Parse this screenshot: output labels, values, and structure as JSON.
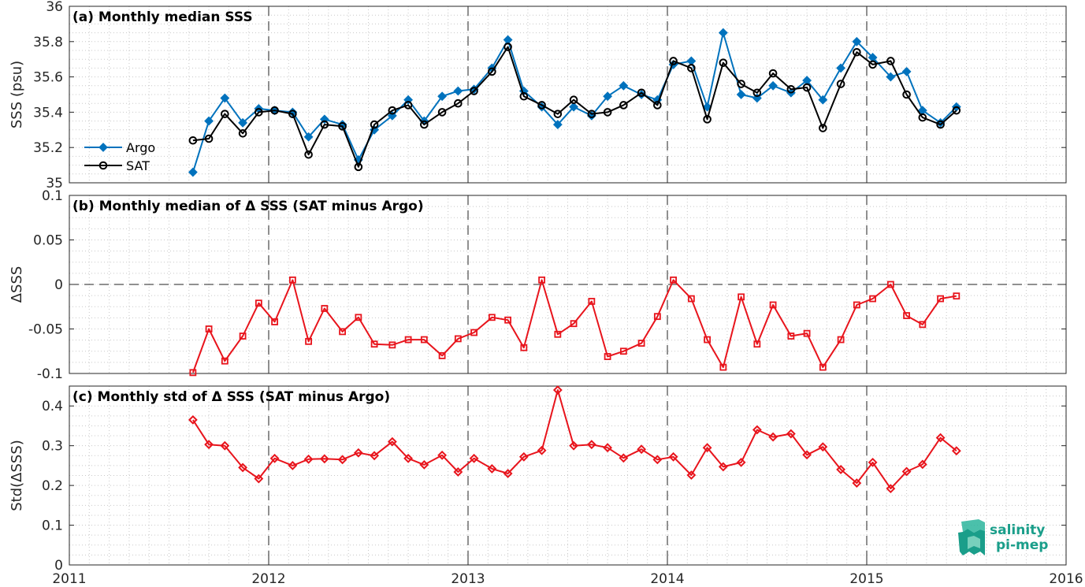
{
  "colors": {
    "argo": "#0072BD",
    "sat": "#000000",
    "delta": "#E8141C",
    "grid": "#c8c8c8",
    "logo": "#1a9e8a"
  },
  "logo": {
    "line1": "salinity",
    "line2": "pi-mep",
    "icon": "wave-logo-icon"
  },
  "x_ticks": [
    "2011",
    "2012",
    "2013",
    "2014",
    "2015",
    "2016"
  ],
  "chart_data": [
    {
      "type": "line",
      "title": "(a) Monthly median SSS",
      "ylabel": "SSS (psu)",
      "xlim": [
        2011,
        2016
      ],
      "ylim": [
        35,
        36
      ],
      "y_ticks": [
        "35",
        "35.2",
        "35.4",
        "35.6",
        "35.8",
        "36"
      ],
      "grid": true,
      "legend": "left",
      "x": [
        2011.62,
        2011.7,
        2011.78,
        2011.87,
        2011.95,
        2012.03,
        2012.12,
        2012.2,
        2012.28,
        2012.37,
        2012.45,
        2012.53,
        2012.62,
        2012.7,
        2012.78,
        2012.87,
        2012.95,
        2013.03,
        2013.12,
        2013.2,
        2013.28,
        2013.37,
        2013.45,
        2013.53,
        2013.62,
        2013.7,
        2013.78,
        2013.87,
        2013.95,
        2014.03,
        2014.12,
        2014.2,
        2014.28,
        2014.37,
        2014.45,
        2014.53,
        2014.62,
        2014.7,
        2014.78,
        2014.87,
        2014.95,
        2015.03,
        2015.12,
        2015.2,
        2015.28,
        2015.37,
        2015.45
      ],
      "series": [
        {
          "name": "Argo",
          "marker": "diamond",
          "values": [
            35.06,
            35.35,
            35.48,
            35.34,
            35.42,
            35.41,
            35.4,
            35.26,
            35.36,
            35.33,
            35.13,
            35.3,
            35.38,
            35.47,
            35.35,
            35.49,
            35.52,
            35.53,
            35.65,
            35.81,
            35.52,
            35.43,
            35.33,
            35.43,
            35.38,
            35.49,
            35.55,
            35.5,
            35.47,
            35.67,
            35.69,
            35.43,
            35.85,
            35.5,
            35.48,
            35.55,
            35.51,
            35.58,
            35.47,
            35.65,
            35.8,
            35.71,
            35.6,
            35.63,
            35.41,
            35.34,
            35.43
          ]
        },
        {
          "name": "SAT",
          "marker": "circle",
          "values": [
            35.24,
            35.25,
            35.39,
            35.28,
            35.4,
            35.41,
            35.39,
            35.16,
            35.33,
            35.32,
            35.09,
            35.33,
            35.41,
            35.44,
            35.33,
            35.4,
            35.45,
            35.52,
            35.63,
            35.77,
            35.49,
            35.44,
            35.39,
            35.47,
            35.39,
            35.4,
            35.44,
            35.51,
            35.44,
            35.69,
            35.65,
            35.36,
            35.68,
            35.56,
            35.51,
            35.62,
            35.53,
            35.54,
            35.31,
            35.56,
            35.74,
            35.67,
            35.69,
            35.5,
            35.37,
            35.33,
            35.41
          ]
        }
      ]
    },
    {
      "type": "line",
      "title": "(b) Monthly median of Δ SSS (SAT minus Argo)",
      "ylabel": "ΔSSS",
      "xlim": [
        2011,
        2016
      ],
      "ylim": [
        -0.1,
        0.1
      ],
      "y_ticks": [
        "-0.1",
        "-0.05",
        "0",
        "0.05",
        "0.1"
      ],
      "grid": true,
      "zero_line": true,
      "x": [
        2011.62,
        2011.7,
        2011.78,
        2011.87,
        2011.95,
        2012.03,
        2012.12,
        2012.2,
        2012.28,
        2012.37,
        2012.45,
        2012.53,
        2012.62,
        2012.7,
        2012.78,
        2012.87,
        2012.95,
        2013.03,
        2013.12,
        2013.2,
        2013.28,
        2013.37,
        2013.45,
        2013.53,
        2013.62,
        2013.7,
        2013.78,
        2013.87,
        2013.95,
        2014.03,
        2014.12,
        2014.2,
        2014.28,
        2014.37,
        2014.45,
        2014.53,
        2014.62,
        2014.7,
        2014.78,
        2014.87,
        2014.95,
        2015.03,
        2015.12,
        2015.2,
        2015.28,
        2015.37,
        2015.45
      ],
      "series": [
        {
          "marker": "square",
          "values": [
            -0.099,
            -0.05,
            -0.086,
            -0.058,
            -0.021,
            -0.042,
            0.005,
            -0.064,
            -0.027,
            -0.053,
            -0.037,
            -0.067,
            -0.068,
            -0.062,
            -0.062,
            -0.08,
            -0.061,
            -0.054,
            -0.037,
            -0.04,
            -0.071,
            0.005,
            -0.056,
            -0.044,
            -0.019,
            -0.081,
            -0.075,
            -0.066,
            -0.036,
            0.005,
            -0.016,
            -0.062,
            -0.093,
            -0.014,
            -0.067,
            -0.023,
            -0.058,
            -0.055,
            -0.093,
            -0.062,
            -0.023,
            -0.016,
            0.0,
            -0.035,
            -0.045,
            -0.016,
            -0.013
          ]
        }
      ]
    },
    {
      "type": "line",
      "title": "(c) Monthly std of Δ SSS (SAT minus Argo)",
      "ylabel": "Std(ΔSSS)",
      "xlim": [
        2011,
        2016
      ],
      "ylim": [
        0,
        0.45
      ],
      "y_ticks": [
        "0",
        "0.1",
        "0.2",
        "0.3",
        "0.4"
      ],
      "grid": true,
      "x": [
        2011.62,
        2011.7,
        2011.78,
        2011.87,
        2011.95,
        2012.03,
        2012.12,
        2012.2,
        2012.28,
        2012.37,
        2012.45,
        2012.53,
        2012.62,
        2012.7,
        2012.78,
        2012.87,
        2012.95,
        2013.03,
        2013.12,
        2013.2,
        2013.28,
        2013.37,
        2013.45,
        2013.53,
        2013.62,
        2013.7,
        2013.78,
        2013.87,
        2013.95,
        2014.03,
        2014.12,
        2014.2,
        2014.28,
        2014.37,
        2014.45,
        2014.53,
        2014.62,
        2014.7,
        2014.78,
        2014.87,
        2014.95,
        2015.03,
        2015.12,
        2015.2,
        2015.28,
        2015.37,
        2015.45
      ],
      "series": [
        {
          "marker": "diamond",
          "values": [
            0.365,
            0.303,
            0.3,
            0.245,
            0.217,
            0.268,
            0.25,
            0.266,
            0.267,
            0.265,
            0.282,
            0.275,
            0.31,
            0.268,
            0.252,
            0.276,
            0.234,
            0.268,
            0.242,
            0.23,
            0.272,
            0.288,
            0.44,
            0.3,
            0.303,
            0.295,
            0.269,
            0.291,
            0.265,
            0.272,
            0.226,
            0.295,
            0.247,
            0.258,
            0.34,
            0.322,
            0.33,
            0.277,
            0.297,
            0.24,
            0.206,
            0.258,
            0.192,
            0.235,
            0.253,
            0.32,
            0.287
          ]
        }
      ]
    }
  ]
}
